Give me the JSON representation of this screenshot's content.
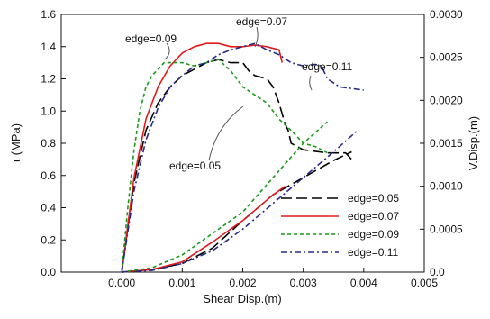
{
  "chart_data": {
    "type": "line",
    "title": "",
    "xlabel": "Shear Disp.(m)",
    "ylabel": "τ (MPa)",
    "y2label": "V.Disp.(m)",
    "xlim": [
      -0.001,
      0.005
    ],
    "ylim": [
      0,
      1.6
    ],
    "y2lim": [
      0,
      0.003
    ],
    "xticks": [
      "0.000",
      "0.001",
      "0.002",
      "0.003",
      "0.004",
      "0.005"
    ],
    "yticks": [
      "0.0",
      "0.2",
      "0.4",
      "0.6",
      "0.8",
      "1.0",
      "1.2",
      "1.4",
      "1.6"
    ],
    "y2ticks": [
      "0.0",
      "0.0005",
      "0.0010",
      "0.0015",
      "0.0020",
      "0.0025",
      "0.0030"
    ],
    "legend_position": "bottom-right",
    "series": [
      {
        "name": "edge=0.05",
        "color": "#000000",
        "dash": "long-dash",
        "shear": [
          [
            0,
            0
          ],
          [
            0.0002,
            0.55
          ],
          [
            0.0004,
            0.88
          ],
          [
            0.0006,
            1.05
          ],
          [
            0.0008,
            1.15
          ],
          [
            0.001,
            1.22
          ],
          [
            0.0012,
            1.26
          ],
          [
            0.0014,
            1.3
          ],
          [
            0.0016,
            1.32
          ],
          [
            0.0018,
            1.3
          ],
          [
            0.002,
            1.3
          ],
          [
            0.0021,
            1.25
          ],
          [
            0.0022,
            1.22
          ],
          [
            0.0024,
            1.2
          ],
          [
            0.0025,
            1.15
          ],
          [
            0.0026,
            1.05
          ],
          [
            0.0027,
            0.92
          ],
          [
            0.00275,
            0.88
          ],
          [
            0.0028,
            0.8
          ],
          [
            0.003,
            0.76
          ],
          [
            0.0032,
            0.75
          ],
          [
            0.0034,
            0.74
          ],
          [
            0.0036,
            0.74
          ],
          [
            0.0037,
            0.74
          ],
          [
            0.0038,
            0.7
          ]
        ],
        "vertical": [
          [
            0,
            0
          ],
          [
            0.0005,
            3e-05
          ],
          [
            0.001,
            0.0001
          ],
          [
            0.0015,
            0.00028
          ],
          [
            0.002,
            0.0006
          ],
          [
            0.0025,
            0.0009
          ],
          [
            0.003,
            0.0011
          ],
          [
            0.0035,
            0.0013
          ],
          [
            0.0038,
            0.0014
          ]
        ]
      },
      {
        "name": "edge=0.07",
        "color": "#e31a1c",
        "dash": "solid",
        "shear": [
          [
            0,
            0
          ],
          [
            0.0002,
            0.58
          ],
          [
            0.0004,
            0.95
          ],
          [
            0.0006,
            1.15
          ],
          [
            0.0008,
            1.28
          ],
          [
            0.001,
            1.36
          ],
          [
            0.0012,
            1.4
          ],
          [
            0.0014,
            1.42
          ],
          [
            0.0016,
            1.42
          ],
          [
            0.0018,
            1.4
          ],
          [
            0.002,
            1.4
          ],
          [
            0.0022,
            1.41
          ],
          [
            0.0024,
            1.4
          ],
          [
            0.0026,
            1.38
          ],
          [
            0.00265,
            1.3
          ]
        ],
        "vertical": [
          [
            0,
            0
          ],
          [
            0.0005,
            3e-05
          ],
          [
            0.001,
            0.00012
          ],
          [
            0.0015,
            0.00035
          ],
          [
            0.002,
            0.0006
          ],
          [
            0.0025,
            0.0009
          ],
          [
            0.0027,
            0.001
          ]
        ]
      },
      {
        "name": "edge=0.09",
        "color": "#1a9a1a",
        "dash": "short-dash",
        "shear": [
          [
            0,
            0
          ],
          [
            0.0001,
            0.4
          ],
          [
            0.0002,
            0.75
          ],
          [
            0.0003,
            1.0
          ],
          [
            0.0004,
            1.15
          ],
          [
            0.0005,
            1.22
          ],
          [
            0.0006,
            1.26
          ],
          [
            0.0007,
            1.3
          ],
          [
            0.001,
            1.3
          ],
          [
            0.0012,
            1.28
          ],
          [
            0.0014,
            1.3
          ],
          [
            0.0016,
            1.32
          ],
          [
            0.0018,
            1.25
          ],
          [
            0.002,
            1.15
          ],
          [
            0.0022,
            1.1
          ],
          [
            0.0024,
            1.05
          ],
          [
            0.0026,
            0.95
          ],
          [
            0.0028,
            0.88
          ],
          [
            0.003,
            0.8
          ],
          [
            0.0032,
            0.78
          ],
          [
            0.0034,
            0.74
          ]
        ],
        "vertical": [
          [
            0,
            0
          ],
          [
            0.0005,
            5e-05
          ],
          [
            0.001,
            0.0002
          ],
          [
            0.0015,
            0.00045
          ],
          [
            0.002,
            0.0007
          ],
          [
            0.0025,
            0.0011
          ],
          [
            0.003,
            0.0015
          ],
          [
            0.0034,
            0.00175
          ]
        ]
      },
      {
        "name": "edge=0.11",
        "color": "#2a2a8a",
        "dash": "dash-dot",
        "shear": [
          [
            0,
            0
          ],
          [
            0.0002,
            0.5
          ],
          [
            0.0004,
            0.82
          ],
          [
            0.0006,
            1.02
          ],
          [
            0.0008,
            1.15
          ],
          [
            0.001,
            1.22
          ],
          [
            0.0012,
            1.28
          ],
          [
            0.0014,
            1.3
          ],
          [
            0.0016,
            1.35
          ],
          [
            0.0018,
            1.38
          ],
          [
            0.002,
            1.4
          ],
          [
            0.0022,
            1.42
          ],
          [
            0.0024,
            1.38
          ],
          [
            0.0026,
            1.35
          ],
          [
            0.0028,
            1.3
          ],
          [
            0.003,
            1.28
          ],
          [
            0.0032,
            1.29
          ],
          [
            0.0033,
            1.28
          ],
          [
            0.0034,
            1.2
          ],
          [
            0.0036,
            1.15
          ],
          [
            0.0038,
            1.14
          ],
          [
            0.004,
            1.13
          ]
        ],
        "vertical": [
          [
            0,
            0
          ],
          [
            0.0005,
            2e-05
          ],
          [
            0.001,
            0.0001
          ],
          [
            0.0015,
            0.00025
          ],
          [
            0.002,
            0.0005
          ],
          [
            0.0025,
            0.0008
          ],
          [
            0.003,
            0.0011
          ],
          [
            0.0035,
            0.0014
          ],
          [
            0.0039,
            0.00165
          ]
        ]
      }
    ],
    "annotations": [
      {
        "text": "edge=0.09"
      },
      {
        "text": "edge=0.07"
      },
      {
        "text": "edge=0.11"
      },
      {
        "text": "edge=0.05"
      }
    ]
  }
}
